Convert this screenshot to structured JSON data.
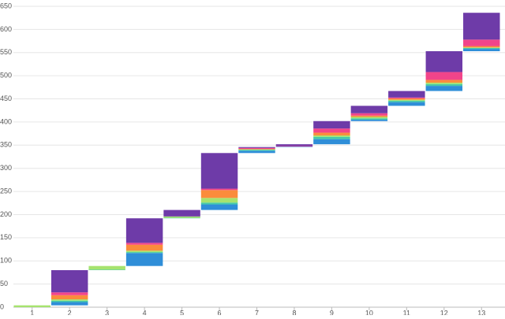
{
  "chart_data": {
    "type": "waterfall",
    "categories": [
      "1",
      "2",
      "3",
      "4",
      "5",
      "6",
      "7",
      "8",
      "9",
      "10",
      "11",
      "12",
      "13"
    ],
    "series": [
      {
        "color": "#2f8ed8",
        "values": [
          0,
          7,
          0,
          28,
          0,
          12,
          5,
          1,
          11,
          3,
          8,
          11,
          5
        ]
      },
      {
        "color": "#45c9a8",
        "values": [
          0,
          3,
          1,
          2,
          1,
          4,
          2,
          0,
          5,
          3,
          3,
          4,
          2
        ]
      },
      {
        "color": "#a6e36e",
        "values": [
          4,
          3,
          8,
          3,
          3,
          10,
          1,
          0,
          3,
          3,
          2,
          3,
          1
        ]
      },
      {
        "color": "#fb8c3c",
        "values": [
          0,
          9,
          0,
          13,
          0,
          17,
          1,
          0,
          6,
          3,
          3,
          6,
          3
        ]
      },
      {
        "color": "#f2448a",
        "values": [
          0,
          6,
          0,
          4,
          0,
          3,
          2,
          1,
          9,
          5,
          2,
          17,
          14
        ]
      },
      {
        "color": "#6e3ba8",
        "values": [
          0,
          48,
          0,
          53,
          14,
          77,
          2,
          4,
          16,
          16,
          14,
          45,
          58
        ]
      }
    ],
    "ylim": [
      0,
      650
    ],
    "yticks": [
      0,
      50,
      100,
      150,
      200,
      250,
      300,
      350,
      400,
      450,
      500,
      550,
      600,
      650
    ],
    "grid": true
  }
}
